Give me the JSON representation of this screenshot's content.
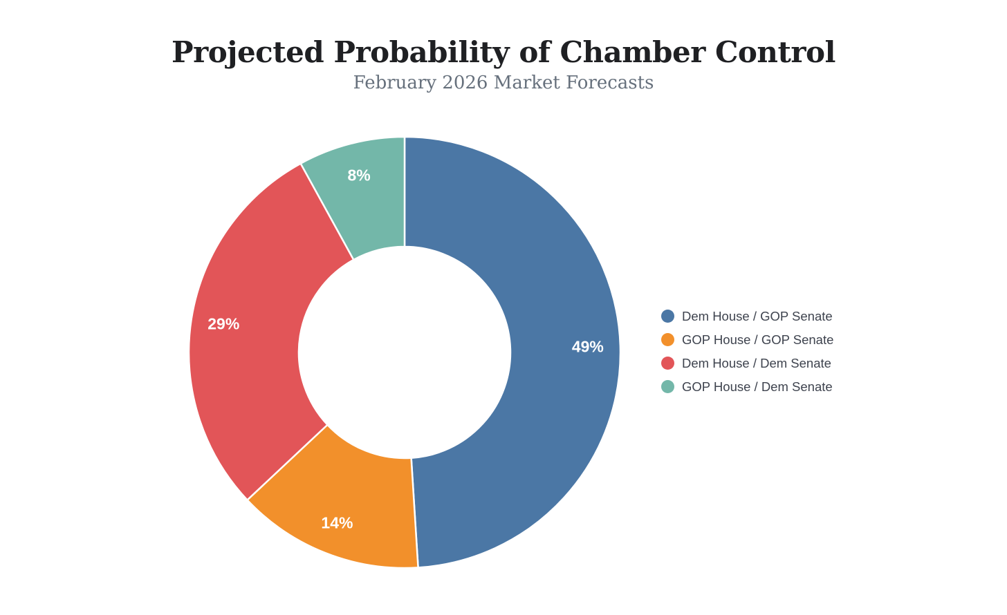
{
  "header": {
    "title": "Projected Probability of Chamber Control",
    "subtitle": "February 2026 Market Forecasts"
  },
  "chart_data": {
    "type": "pie",
    "variant": "donut",
    "title": "Projected Probability of Chamber Control",
    "subtitle": "February 2026 Market Forecasts",
    "unit": "%",
    "direction": "clockwise",
    "start_angle_deg": 0,
    "inner_radius_ratio": 0.49,
    "legend_position": "right",
    "slices": [
      {
        "label": "Dem House / GOP Senate",
        "value": 49,
        "display": "49%",
        "color": "#4b77a5"
      },
      {
        "label": "GOP House / GOP Senate",
        "value": 14,
        "display": "14%",
        "color": "#f2902b"
      },
      {
        "label": "Dem House / Dem Senate",
        "value": 29,
        "display": "29%",
        "color": "#e25558"
      },
      {
        "label": "GOP House / Dem Senate",
        "value": 8,
        "display": "8%",
        "color": "#73b7a9"
      }
    ]
  },
  "style": {
    "background": "#ffffff",
    "title_color": "#1f2023",
    "subtitle_color": "#66707c",
    "legend_text_color": "#3e434e",
    "slice_label_color": "#ffffff",
    "slice_separator_color": "#ffffff"
  }
}
